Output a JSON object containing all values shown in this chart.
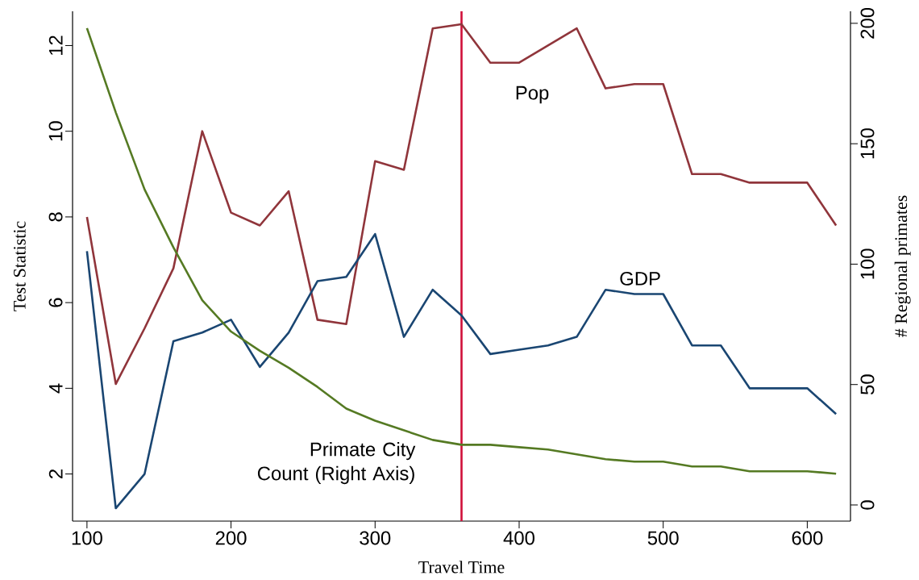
{
  "chart_data": {
    "type": "line",
    "xlabel": "Travel Time",
    "ylabel": "Test Statistic",
    "y2label": "# Regional primates",
    "x": [
      100,
      120,
      140,
      160,
      180,
      200,
      220,
      240,
      260,
      280,
      300,
      320,
      340,
      360,
      380,
      400,
      420,
      440,
      460,
      480,
      500,
      520,
      540,
      560,
      580,
      600,
      620
    ],
    "series": [
      {
        "name": "Pop",
        "color": "#90353b",
        "values": [
          8.0,
          4.1,
          5.4,
          6.8,
          10.0,
          8.1,
          7.8,
          8.6,
          5.6,
          5.5,
          9.3,
          9.1,
          12.4,
          12.5,
          11.6,
          11.6,
          12.0,
          12.4,
          11.0,
          11.1,
          11.1,
          9.0,
          9.0,
          8.8,
          8.8,
          8.8,
          7.8
        ]
      },
      {
        "name": "GDP",
        "color": "#1a4672",
        "values": [
          7.2,
          1.2,
          2.0,
          5.1,
          5.3,
          5.6,
          4.5,
          5.3,
          6.5,
          6.6,
          7.6,
          5.2,
          6.3,
          5.7,
          4.8,
          4.9,
          5.0,
          5.2,
          6.3,
          6.2,
          6.2,
          5.0,
          5.0,
          4.0,
          4.0,
          4.0,
          3.4
        ]
      },
      {
        "name": "Primate City Count (Right Axis)",
        "color": "#557a23",
        "axis": "y2",
        "values": [
          198,
          163,
          131,
          107,
          85,
          72,
          64,
          57,
          49,
          40,
          35,
          31,
          27,
          25,
          25,
          24,
          23,
          21,
          19,
          18,
          18,
          16,
          16,
          14,
          14,
          14,
          13
        ]
      }
    ],
    "xlim": [
      90,
      630
    ],
    "xticks": [
      100,
      200,
      300,
      400,
      500,
      600
    ],
    "ylim": [
      0.9,
      12.8
    ],
    "yticks": [
      2,
      4,
      6,
      8,
      10,
      12
    ],
    "y2lim": [
      -6.7,
      205
    ],
    "y2ticks": [
      0,
      50,
      100,
      150,
      200
    ],
    "ref_lines": [
      {
        "axis": "x",
        "value": 360,
        "color": "#d0103a"
      }
    ],
    "marker": "none",
    "line_style": "solid"
  }
}
